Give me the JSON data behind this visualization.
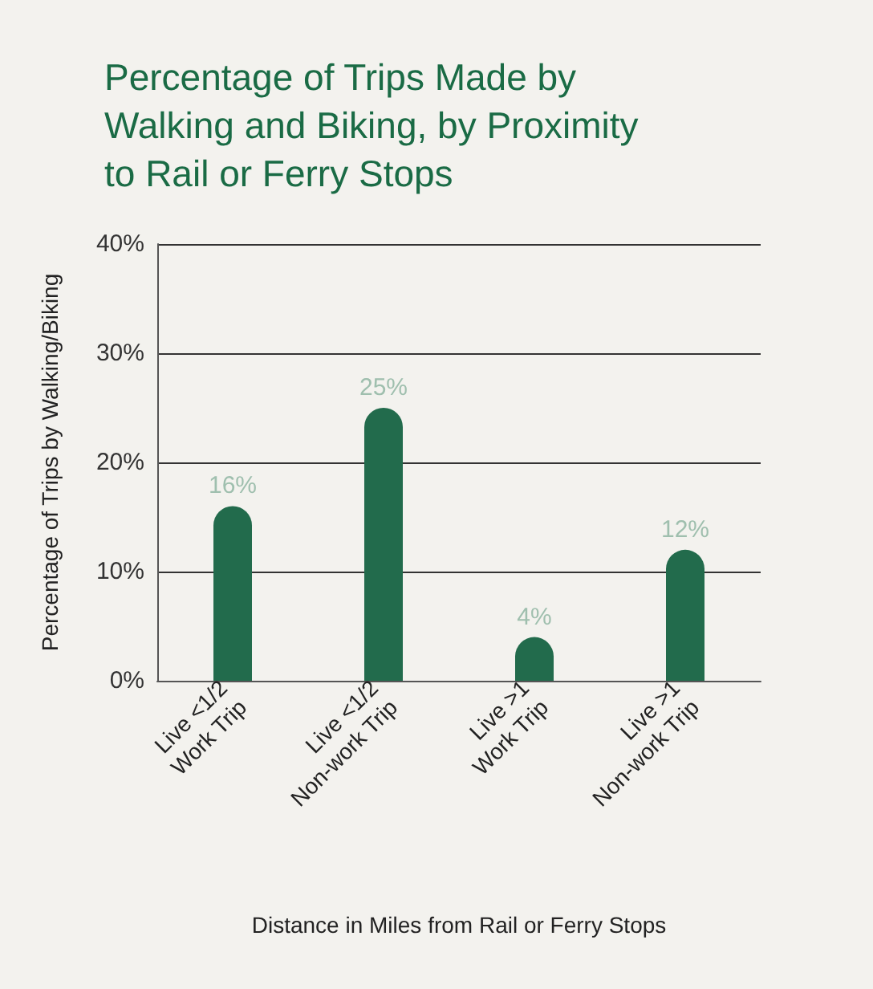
{
  "chart_data": {
    "type": "bar",
    "title": "Percentage of Trips Made by\nWalking and Biking, by Proximity\nto Rail or Ferry Stops",
    "xlabel": "Distance in Miles from Rail or Ferry Stops",
    "ylabel": "Percentage of Trips by Walking/Biking",
    "categories": [
      "Live <1/2\nWork Trip",
      "Live <1/2\nNon-work Trip",
      "Live >1\nWork Trip",
      "Live >1\nNon-work Trip"
    ],
    "values": [
      16,
      25,
      4,
      12
    ],
    "color": "#226b4c",
    "value_labels": [
      "16%",
      "25%",
      "4%",
      "12%"
    ],
    "ylim": [
      0,
      40
    ],
    "yticks": [
      {
        "value": 0,
        "label": "0%"
      },
      {
        "value": 10,
        "label": "10%"
      },
      {
        "value": 20,
        "label": "20%"
      },
      {
        "value": 30,
        "label": "30%"
      },
      {
        "value": 40,
        "label": "40%"
      }
    ],
    "grid": "y"
  }
}
